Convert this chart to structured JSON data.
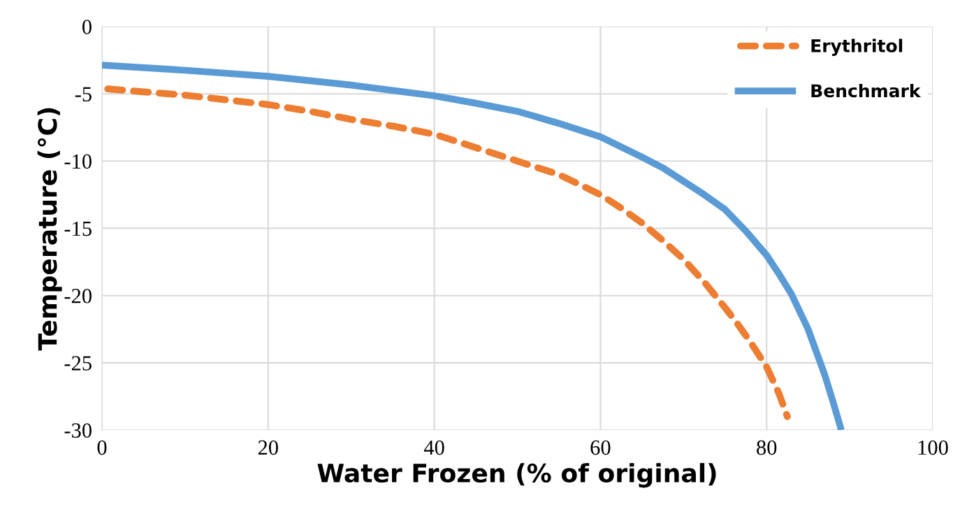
{
  "chart_data": {
    "type": "line",
    "xlabel": "Water Frozen (% of original)",
    "ylabel": "Temperature (°C)",
    "xlim": [
      0,
      100
    ],
    "xticks": [
      0,
      20,
      40,
      60,
      80,
      100
    ],
    "ylim": [
      -30,
      0
    ],
    "yticks": [
      -30,
      -25,
      -20,
      -15,
      -10,
      -5,
      0
    ],
    "grid": true,
    "legend": "top right",
    "series": [
      {
        "name": "Erythritol",
        "color": "#ed7d31",
        "line_style": "dashed",
        "x": [
          0,
          5,
          10,
          15,
          20,
          25,
          30,
          35,
          40,
          45,
          50,
          55,
          60,
          62.5,
          65,
          67.5,
          70,
          72.5,
          75,
          76.5,
          78,
          80,
          81.5,
          82.5
        ],
        "values": [
          -4.6,
          -4.85,
          -5.1,
          -5.45,
          -5.8,
          -6.3,
          -6.9,
          -7.4,
          -8.0,
          -9.0,
          -10.0,
          -11.0,
          -12.5,
          -13.5,
          -14.6,
          -15.9,
          -17.3,
          -19.0,
          -20.9,
          -22.1,
          -23.4,
          -25.3,
          -27.3,
          -29.0
        ]
      },
      {
        "name": "Benchmark",
        "color": "#5b9bd5",
        "line_style": "solid",
        "x": [
          0,
          10,
          20,
          30,
          40,
          45,
          50,
          55,
          60,
          65,
          67.5,
          70,
          72.5,
          75,
          77.5,
          80,
          81.5,
          83,
          85,
          87,
          88,
          89
        ],
        "values": [
          -2.86,
          -3.25,
          -3.7,
          -4.35,
          -5.15,
          -5.7,
          -6.3,
          -7.2,
          -8.2,
          -9.7,
          -10.5,
          -11.5,
          -12.5,
          -13.6,
          -15.2,
          -17.0,
          -18.4,
          -19.9,
          -22.5,
          -25.9,
          -27.9,
          -30.0
        ]
      }
    ]
  }
}
